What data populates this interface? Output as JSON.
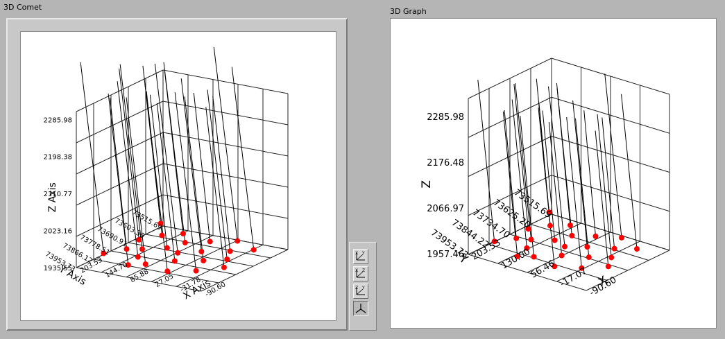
{
  "left_panel": {
    "caption": "3D Comet"
  },
  "right_panel": {
    "caption": "3D Graph"
  },
  "view_buttons": [
    {
      "name": "view-xy-button",
      "a": "X",
      "b": "Y",
      "pressed": false
    },
    {
      "name": "view-xz-button",
      "a": "X",
      "b": "Z",
      "pressed": false
    },
    {
      "name": "view-yz-button",
      "a": "Z",
      "b": "Y",
      "pressed": false
    },
    {
      "name": "view-default-3d-button",
      "a": "",
      "b": "",
      "pressed": true
    }
  ],
  "chart_data": [
    {
      "type": "scatter3d",
      "title": "3D Comet",
      "xlabel": "X Axis",
      "ylabel": "Y Axis",
      "zlabel": "Z Axis",
      "x_ticks": [
        "-90.60",
        "-31.78",
        "27.05",
        "85.88",
        "144.70",
        "203.53"
      ],
      "y_ticks": [
        "73515.69",
        "73603.30",
        "73690.91",
        "73778.51",
        "73866.12",
        "73953.73"
      ],
      "z_ticks": [
        "1935.55",
        "2023.16",
        "2110.77",
        "2198.38",
        "2285.98"
      ],
      "xlim": [
        -90.6,
        203.53
      ],
      "ylim": [
        73515.69,
        73953.73
      ],
      "zlim": [
        1935.55,
        2285.98
      ],
      "marker_color": "#ff0000",
      "grid": true,
      "comet_tails": true
    },
    {
      "type": "scatter3d",
      "title": "3D Graph",
      "xlabel": "X",
      "ylabel": "Y",
      "zlabel": "Z",
      "x_ticks": [
        "-90.60",
        "-17.07",
        "56.46",
        "130.00",
        "203.53"
      ],
      "y_ticks": [
        "73515.69",
        "73625.20",
        "73734.70",
        "73844.22",
        "73953.73"
      ],
      "z_ticks": [
        "1957.46",
        "2066.97",
        "2176.48",
        "2285.98"
      ],
      "xlim": [
        -90.6,
        203.53
      ],
      "ylim": [
        73515.69,
        73953.73
      ],
      "zlim": [
        1935.55,
        2285.98
      ],
      "marker_color": "#ff0000",
      "grid": true,
      "comet_tails": true
    }
  ]
}
